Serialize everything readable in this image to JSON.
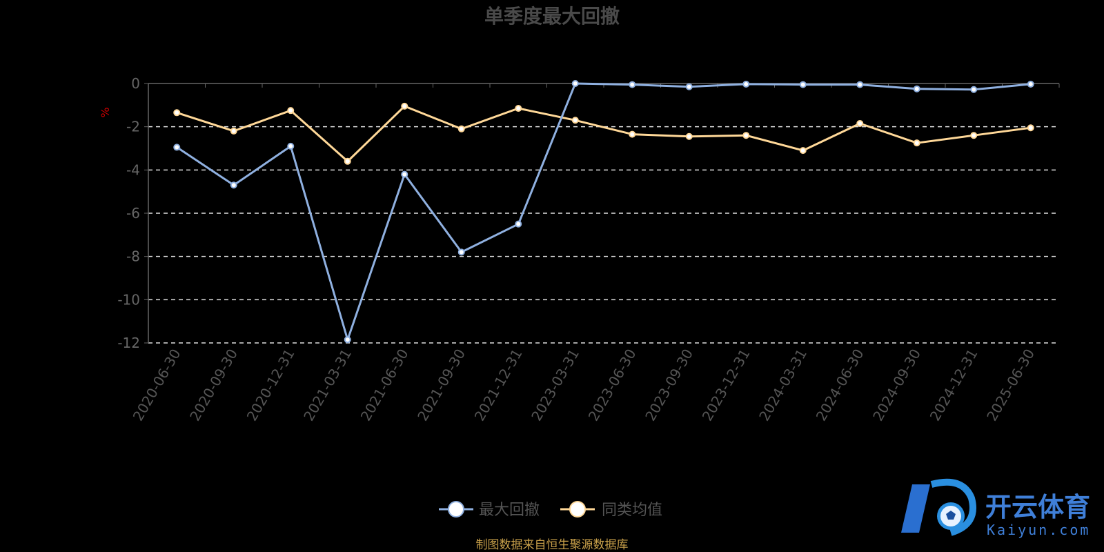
{
  "chart_data": {
    "type": "line",
    "title": "单季度最大回撤",
    "ylabel": "%",
    "ylim": [
      -12,
      0
    ],
    "yticks": [
      0,
      -2,
      -4,
      -6,
      -8,
      -10,
      -12
    ],
    "categories": [
      "2020-06-30",
      "2020-09-30",
      "2020-12-31",
      "2021-03-31",
      "2021-06-30",
      "2021-09-30",
      "2021-12-31",
      "2023-03-31",
      "2023-06-30",
      "2023-09-30",
      "2023-12-31",
      "2024-03-31",
      "2024-06-30",
      "2024-09-30",
      "2024-12-31",
      "2025-06-30"
    ],
    "series": [
      {
        "name": "最大回撤",
        "color": "#8fb0e0",
        "values": [
          -2.95,
          -4.7,
          -2.9,
          -11.85,
          -4.2,
          -7.8,
          -6.5,
          0.0,
          -0.05,
          -0.15,
          -0.03,
          -0.05,
          -0.05,
          -0.25,
          -0.28,
          -0.03
        ]
      },
      {
        "name": "同类均值",
        "color": "#ffd898",
        "values": [
          -1.35,
          -2.2,
          -1.25,
          -3.6,
          -1.05,
          -2.1,
          -1.15,
          -1.7,
          -2.35,
          -2.45,
          -2.4,
          -3.1,
          -1.85,
          -2.75,
          -2.4,
          -2.05
        ]
      }
    ],
    "grid": true,
    "legend": "bottom-center"
  },
  "source_note": "制图数据来自恒生聚源数据库",
  "watermark": {
    "brand": "开云体育",
    "domain": "Kaiyun.com"
  }
}
